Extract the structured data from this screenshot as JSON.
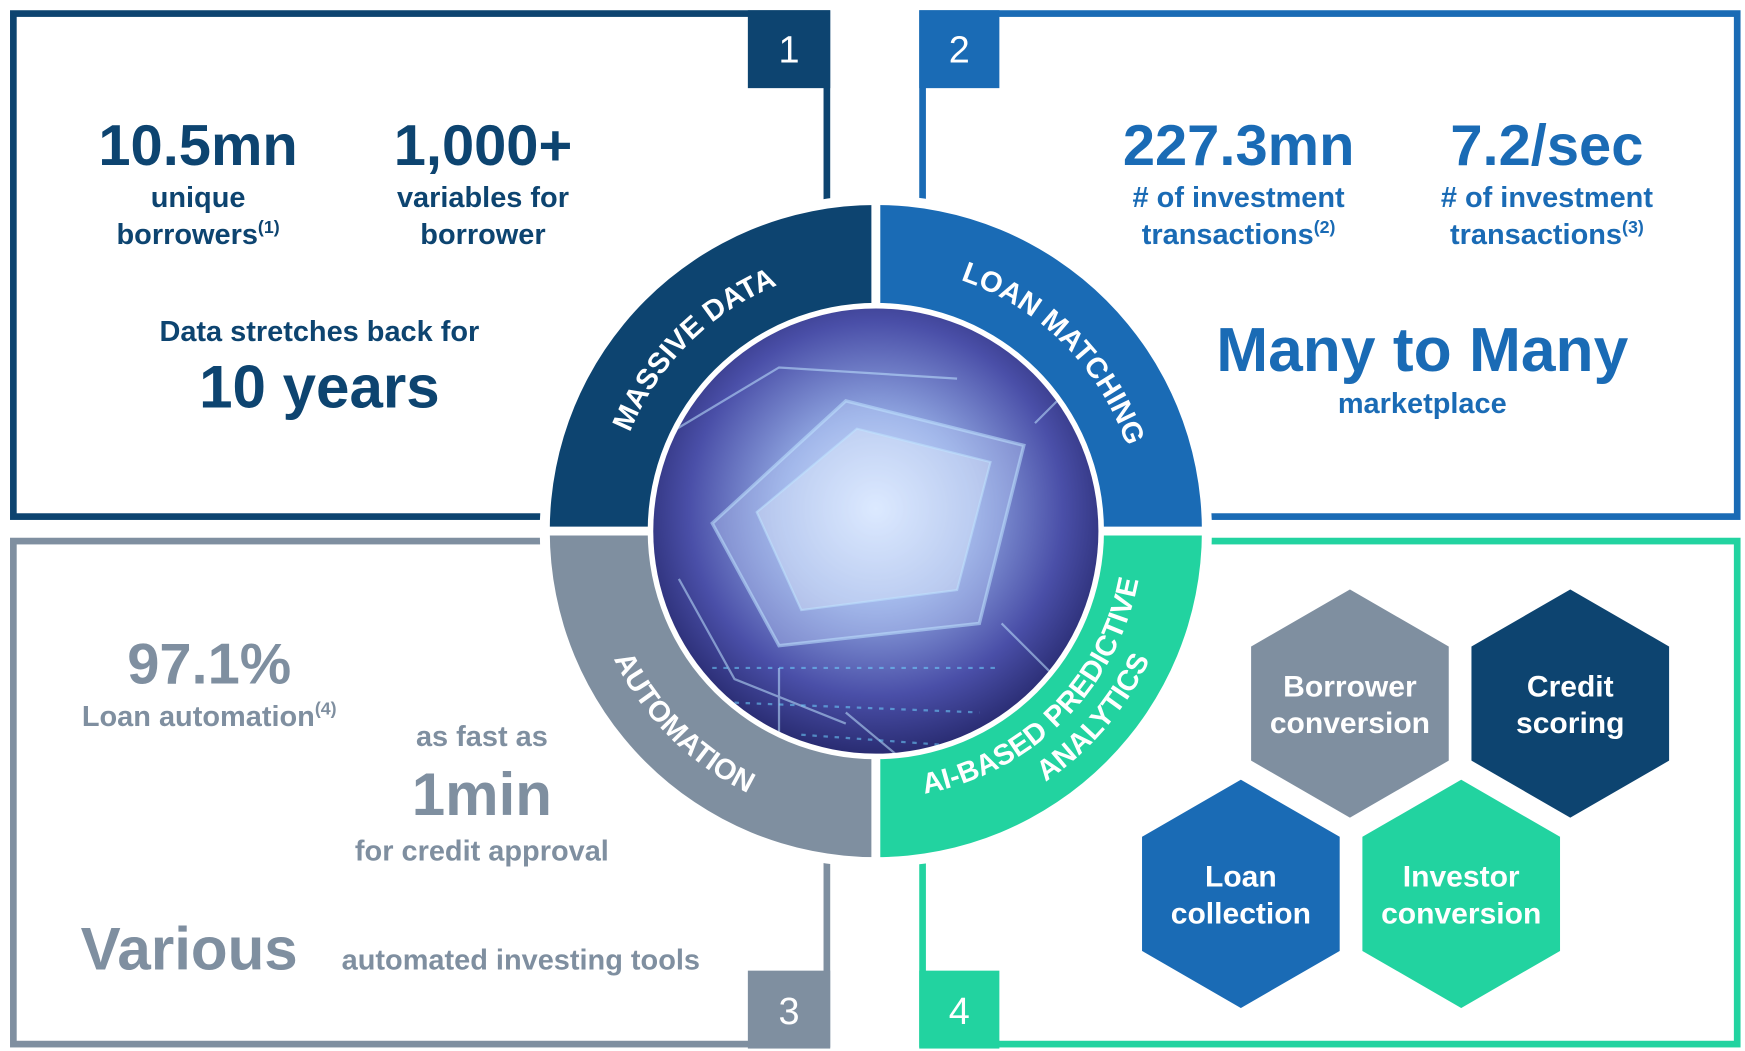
{
  "quadrants": [
    {
      "number": "1",
      "stats": [
        {
          "value": "10.5mn",
          "label": [
            "unique",
            "borrowers"
          ],
          "note": "(1)"
        },
        {
          "value": "1,000+",
          "label": [
            "variables for",
            "borrower"
          ]
        }
      ],
      "lead": "Data stretches back for",
      "highlight": "10 years"
    },
    {
      "number": "2",
      "stats": [
        {
          "value": "227.3mn",
          "label": [
            "# of investment",
            "transactions"
          ],
          "note": "(2)"
        },
        {
          "value": "7.2/sec",
          "label": [
            "# of investment",
            "transactions"
          ],
          "note": "(3)"
        }
      ],
      "highlight": "Many to Many",
      "tail": "marketplace"
    },
    {
      "number": "3",
      "stats": [
        {
          "value": "97.1%",
          "label": [
            "Loan automation"
          ],
          "note": "(4)"
        }
      ],
      "lead": "as fast as",
      "highlight": "1min",
      "tail": "for credit approval",
      "footer_highlight": "Various",
      "footer_tail": "automated investing tools"
    },
    {
      "number": "4",
      "hexagons": [
        [
          "Borrower",
          "conversion"
        ],
        [
          "Credit",
          "scoring"
        ],
        [
          "Loan",
          "collection"
        ],
        [
          "Investor",
          "conversion"
        ]
      ]
    }
  ],
  "ring": [
    "MASSIVE DATA",
    "LOAN MATCHING",
    "AUTOMATION",
    [
      "AI-BASED PREDICTIVE",
      "ANALYTICS"
    ]
  ]
}
